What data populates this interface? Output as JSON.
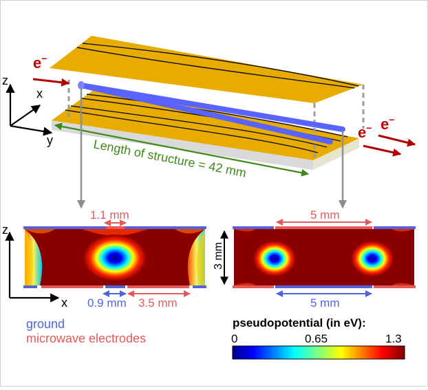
{
  "diagram": {
    "electron_symbol": "e",
    "electron_sign": "−",
    "axes_3d": {
      "z": "z",
      "x": "x",
      "y": "y"
    },
    "axes_2d": {
      "z": "z",
      "x": "x"
    },
    "structure_length_label": "Length of structure = 42 mm",
    "left_panel": {
      "top_gap_label": "1.1 mm",
      "bottom_ground_gap_label": "0.9 mm",
      "bottom_electrode_width_label": "3.5 mm"
    },
    "right_panel": {
      "top_width_label": "5 mm",
      "bottom_width_label": "5 mm",
      "height_label": "3 mm"
    },
    "legend": {
      "ground_label": "ground",
      "microwave_label": "microwave electrodes"
    },
    "colorbar": {
      "title": "pseudopotential (in eV):",
      "min_label": "0",
      "mid_label": "0.65",
      "max_label": "1.3"
    },
    "colors": {
      "gold": "#e8ab00",
      "beam": "#5a63ff",
      "ground": "#5563d9",
      "microwave": "#e35a5a",
      "length_arrow": "#3d8a16",
      "dark_red": "#8a0000"
    }
  }
}
